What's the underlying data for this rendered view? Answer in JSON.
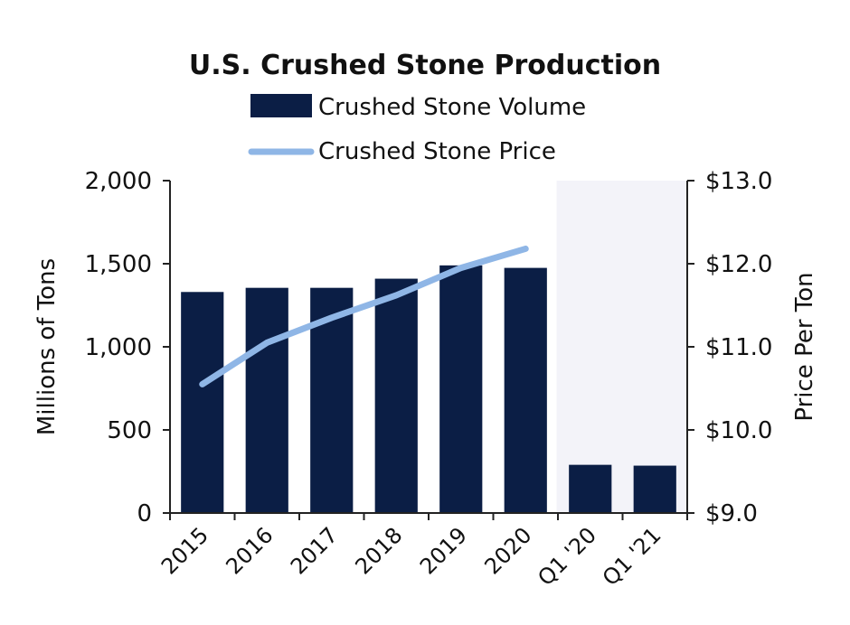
{
  "chart_data": {
    "type": "bar",
    "title": "U.S. Crushed Stone Production",
    "categories": [
      "2015",
      "2016",
      "2017",
      "2018",
      "2019",
      "2020",
      "Q1 '20",
      "Q1 '21"
    ],
    "series": [
      {
        "name": "Crushed Stone Volume",
        "type": "bar",
        "axis": "left",
        "color": "#0b1e45",
        "values": [
          1330,
          1355,
          1355,
          1410,
          1490,
          1475,
          290,
          285
        ]
      },
      {
        "name": "Crushed Stone Price",
        "type": "line",
        "axis": "right",
        "color": "#8fb6e6",
        "values": [
          10.55,
          11.05,
          11.35,
          11.62,
          11.95,
          12.18,
          null,
          null
        ]
      }
    ],
    "ylabel": "Millions of Tons",
    "ylim": [
      0,
      2000
    ],
    "yticks": [
      "0",
      "500",
      "1,000",
      "1,500",
      "2,000"
    ],
    "y2label": "Price Per Ton",
    "y2lim": [
      9.0,
      13.0
    ],
    "y2ticks": [
      "$9.0",
      "$10.0",
      "$11.0",
      "$12.0",
      "$13.0"
    ],
    "shaded_categories": [
      "Q1 '20",
      "Q1 '21"
    ],
    "shade_color": "#f3f3f9",
    "legend_position": "top",
    "grid": false
  }
}
